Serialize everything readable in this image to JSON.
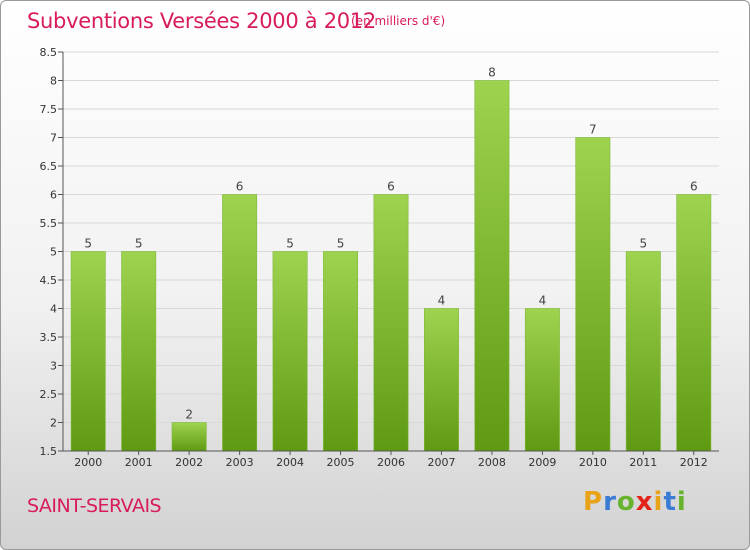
{
  "header": {
    "title": "Subventions Versées 2000 à 2012",
    "subtitle": "(en milliers d'€)"
  },
  "footer": {
    "commune": "SAINT-SERVAIS",
    "logo_text": "Proxiti"
  },
  "colors": {
    "title": "#d81b5a",
    "bar_top": "#9ed34f",
    "bar_bottom": "#5f9a12",
    "axis": "#555555",
    "grid": "#d8d8d8"
  },
  "chart_data": {
    "type": "bar",
    "title": "Subventions Versées 2000 à 2012",
    "subtitle": "(en milliers d'€)",
    "categories": [
      "2000",
      "2001",
      "2002",
      "2003",
      "2004",
      "2005",
      "2006",
      "2007",
      "2008",
      "2009",
      "2010",
      "2011",
      "2012"
    ],
    "values": [
      5,
      5,
      2,
      6,
      5,
      5,
      6,
      4,
      8,
      4,
      7,
      5,
      6
    ],
    "ylim": [
      1.5,
      8.5
    ],
    "yticks": [
      1.5,
      2,
      2.5,
      3,
      3.5,
      4,
      4.5,
      5,
      5.5,
      6,
      6.5,
      7,
      7.5,
      8,
      8.5
    ],
    "ytick_labels": [
      "1.5",
      "2",
      "2.5",
      "3",
      "3.5",
      "4",
      "4.5",
      "5",
      "5.5",
      "6",
      "6.5",
      "7",
      "7.5",
      "8",
      "8.5"
    ],
    "grid": true,
    "data_labels": true,
    "xlabel": "",
    "ylabel": ""
  }
}
